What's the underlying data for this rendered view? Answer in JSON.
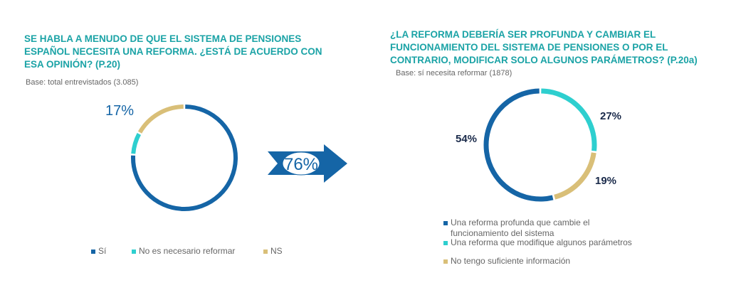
{
  "colors": {
    "blue": "#1565a6",
    "teal": "#2ecfcf",
    "gold": "#d9bf78",
    "title": "#1ba3a6"
  },
  "chart_data": [
    {
      "type": "pie",
      "donut": true,
      "title": "SE HABLA A MENUDO DE QUE EL SISTEMA DE PENSIONES\nESPAÑOL NECESITA UNA REFORMA. ¿ESTÁ DE ACUERDO CON\nESA OPINIÓN? (P.20)",
      "base": "Base: total entrevistados (3.085)",
      "categories": [
        "Sí",
        "No es necesario reformar",
        "NS"
      ],
      "values": [
        76,
        7,
        17
      ],
      "labels": [
        "76%",
        "",
        "17%"
      ],
      "legend": "bottom"
    },
    {
      "type": "pie",
      "donut": true,
      "title": "¿LA REFORMA DEBERÍA SER PROFUNDA Y CAMBIAR EL\nFUNCIONAMIENTO DEL SISTEMA DE PENSIONES O POR EL\nCONTRARIO, MODIFICAR SOLO ALGUNOS PARÁMETROS? (P.20a)",
      "base": "Base: sí necesita reformar (1878)",
      "categories": [
        "Una reforma profunda que cambie el funcionamiento del sistema",
        "Una reforma que modifique algunos parámetros",
        "No tengo suficiente información"
      ],
      "values": [
        54,
        27,
        19
      ],
      "labels": [
        "54%",
        "27%",
        "19%"
      ],
      "legend": "bottom"
    }
  ]
}
